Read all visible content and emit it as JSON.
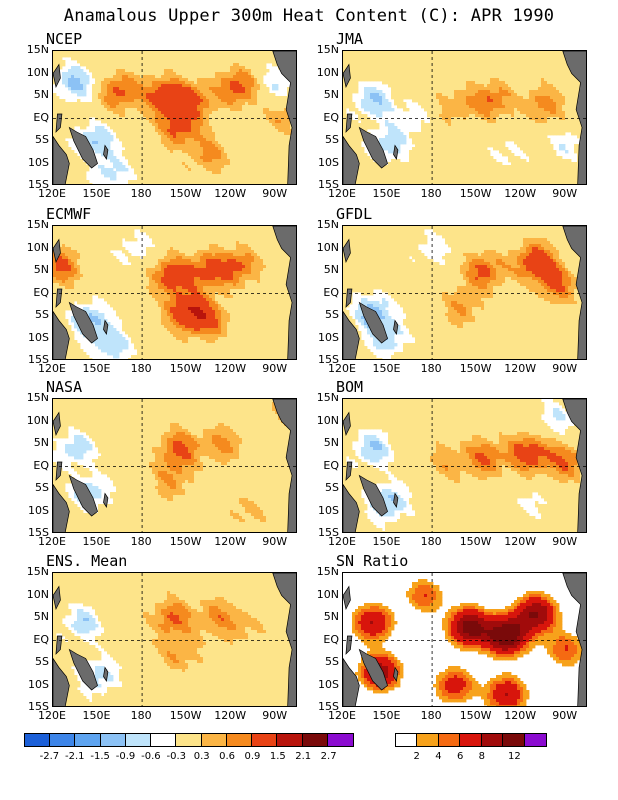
{
  "title": "Anamalous Upper 300m Heat Content (C): APR 1990",
  "lat_labels": [
    "15N",
    "10N",
    "5N",
    "EQ",
    "5S",
    "10S",
    "15S"
  ],
  "lon_labels": [
    "120E",
    "150E",
    "180",
    "150W",
    "120W",
    "90W"
  ],
  "panels": [
    {
      "name": "NCEP",
      "kind": "anomaly",
      "blobs": [
        {
          "lon": 165,
          "lat": 6,
          "v": 1.0
        },
        {
          "lon": 195,
          "lat": 5,
          "v": 1.2
        },
        {
          "lon": 215,
          "lat": 4,
          "v": 0.9
        },
        {
          "lon": 245,
          "lat": 7,
          "v": 1.1
        },
        {
          "lon": 205,
          "lat": -2,
          "v": 1.0
        },
        {
          "lon": 225,
          "lat": -8,
          "v": 0.7
        },
        {
          "lon": 135,
          "lat": 8,
          "v": -1.0
        },
        {
          "lon": 148,
          "lat": -5,
          "v": -0.9
        },
        {
          "lon": 160,
          "lat": -12,
          "v": -0.7
        },
        {
          "lon": 270,
          "lat": 8,
          "v": -0.6
        },
        {
          "lon": 275,
          "lat": 0,
          "v": 0.5
        }
      ]
    },
    {
      "name": "JMA",
      "kind": "anomaly",
      "blobs": [
        {
          "lon": 220,
          "lat": 4,
          "v": 0.9
        },
        {
          "lon": 255,
          "lat": 3,
          "v": 0.8
        },
        {
          "lon": 195,
          "lat": 3,
          "v": 0.5
        },
        {
          "lon": 140,
          "lat": 4,
          "v": -0.9
        },
        {
          "lon": 150,
          "lat": -6,
          "v": -0.8
        },
        {
          "lon": 165,
          "lat": 0,
          "v": -0.5
        },
        {
          "lon": 230,
          "lat": -8,
          "v": -0.4
        },
        {
          "lon": 270,
          "lat": -6,
          "v": -0.5
        }
      ]
    },
    {
      "name": "ECMWF",
      "kind": "anomaly",
      "blobs": [
        {
          "lon": 200,
          "lat": 4,
          "v": 1.2
        },
        {
          "lon": 225,
          "lat": 5,
          "v": 1.0
        },
        {
          "lon": 245,
          "lat": 6,
          "v": 0.9
        },
        {
          "lon": 210,
          "lat": -4,
          "v": 1.3
        },
        {
          "lon": 225,
          "lat": -6,
          "v": 0.9
        },
        {
          "lon": 125,
          "lat": 6,
          "v": 1.0
        },
        {
          "lon": 145,
          "lat": -6,
          "v": -1.0
        },
        {
          "lon": 160,
          "lat": -12,
          "v": -0.8
        },
        {
          "lon": 175,
          "lat": 10,
          "v": -0.5
        }
      ]
    },
    {
      "name": "GFDL",
      "kind": "anomaly",
      "blobs": [
        {
          "lon": 215,
          "lat": 5,
          "v": 1.0
        },
        {
          "lon": 250,
          "lat": 7,
          "v": 1.3
        },
        {
          "lon": 265,
          "lat": 2,
          "v": 0.9
        },
        {
          "lon": 200,
          "lat": -3,
          "v": 0.6
        },
        {
          "lon": 140,
          "lat": -4,
          "v": -1.0
        },
        {
          "lon": 150,
          "lat": -10,
          "v": -0.8
        },
        {
          "lon": 180,
          "lat": 10,
          "v": -0.5
        }
      ]
    },
    {
      "name": "NASA",
      "kind": "anomaly",
      "blobs": [
        {
          "lon": 205,
          "lat": 4,
          "v": 1.0
        },
        {
          "lon": 235,
          "lat": 5,
          "v": 0.7
        },
        {
          "lon": 200,
          "lat": -3,
          "v": 0.6
        },
        {
          "lon": 135,
          "lat": 4,
          "v": -0.8
        },
        {
          "lon": 145,
          "lat": -6,
          "v": -0.8
        },
        {
          "lon": 285,
          "lat": 13,
          "v": 1.0
        },
        {
          "lon": 250,
          "lat": -10,
          "v": 0.4
        }
      ]
    },
    {
      "name": "BOM",
      "kind": "anomaly",
      "blobs": [
        {
          "lon": 215,
          "lat": 2,
          "v": 0.9
        },
        {
          "lon": 245,
          "lat": 3,
          "v": 1.2
        },
        {
          "lon": 270,
          "lat": 1,
          "v": 0.9
        },
        {
          "lon": 190,
          "lat": 1,
          "v": 0.5
        },
        {
          "lon": 140,
          "lat": 4,
          "v": -0.9
        },
        {
          "lon": 150,
          "lat": -8,
          "v": -1.0
        },
        {
          "lon": 265,
          "lat": 11,
          "v": -0.6
        },
        {
          "lon": 250,
          "lat": -8,
          "v": -0.4
        }
      ]
    },
    {
      "name": "ENS. Mean",
      "kind": "anomaly",
      "blobs": [
        {
          "lon": 200,
          "lat": 5,
          "v": 0.9
        },
        {
          "lon": 230,
          "lat": 5,
          "v": 0.7
        },
        {
          "lon": 205,
          "lat": -3,
          "v": 0.6
        },
        {
          "lon": 250,
          "lat": 3,
          "v": 0.4
        },
        {
          "lon": 140,
          "lat": 4,
          "v": -0.8
        },
        {
          "lon": 150,
          "lat": -8,
          "v": -0.8
        }
      ]
    },
    {
      "name": "SN Ratio",
      "kind": "snr",
      "blobs": [
        {
          "lon": 205,
          "lat": 3,
          "v": 9
        },
        {
          "lon": 230,
          "lat": 1,
          "v": 10
        },
        {
          "lon": 250,
          "lat": 6,
          "v": 8
        },
        {
          "lon": 140,
          "lat": 4,
          "v": 6
        },
        {
          "lon": 145,
          "lat": -7,
          "v": 7
        },
        {
          "lon": 195,
          "lat": -10,
          "v": 5
        },
        {
          "lon": 230,
          "lat": -12,
          "v": 6
        },
        {
          "lon": 270,
          "lat": -2,
          "v": 4
        },
        {
          "lon": 175,
          "lat": 10,
          "v": 4
        }
      ]
    }
  ],
  "anomaly_colorbar": {
    "colors": [
      "#1c60d8",
      "#3d85e8",
      "#5ea4f0",
      "#8cc2f5",
      "#bfe4fb",
      "#ffffff",
      "#fde48a",
      "#fbb545",
      "#f58a1e",
      "#e84315",
      "#b8140c",
      "#7a0a0a",
      "#8b0bd0"
    ],
    "labels": [
      "-2.7",
      "-2.1",
      "-1.5",
      "-0.9",
      "-0.6",
      "-0.3",
      "0.3",
      "0.6",
      "0.9",
      "1.5",
      "2.1",
      "2.7"
    ],
    "thresholds": [
      -2.7,
      -2.1,
      -1.5,
      -0.9,
      -0.6,
      -0.3,
      0.3,
      0.6,
      0.9,
      1.5,
      2.1,
      2.7
    ]
  },
  "snr_colorbar": {
    "colors": [
      "#ffffff",
      "#f7a21b",
      "#f56a12",
      "#d8150c",
      "#a10b0b",
      "#7a0a0a",
      "#8b0bd0"
    ],
    "labels": [
      "2",
      "4",
      "6",
      "8",
      "12"
    ],
    "thresholds": [
      2,
      3,
      4,
      6,
      8,
      12
    ]
  },
  "land_color": "#6b6b6b"
}
